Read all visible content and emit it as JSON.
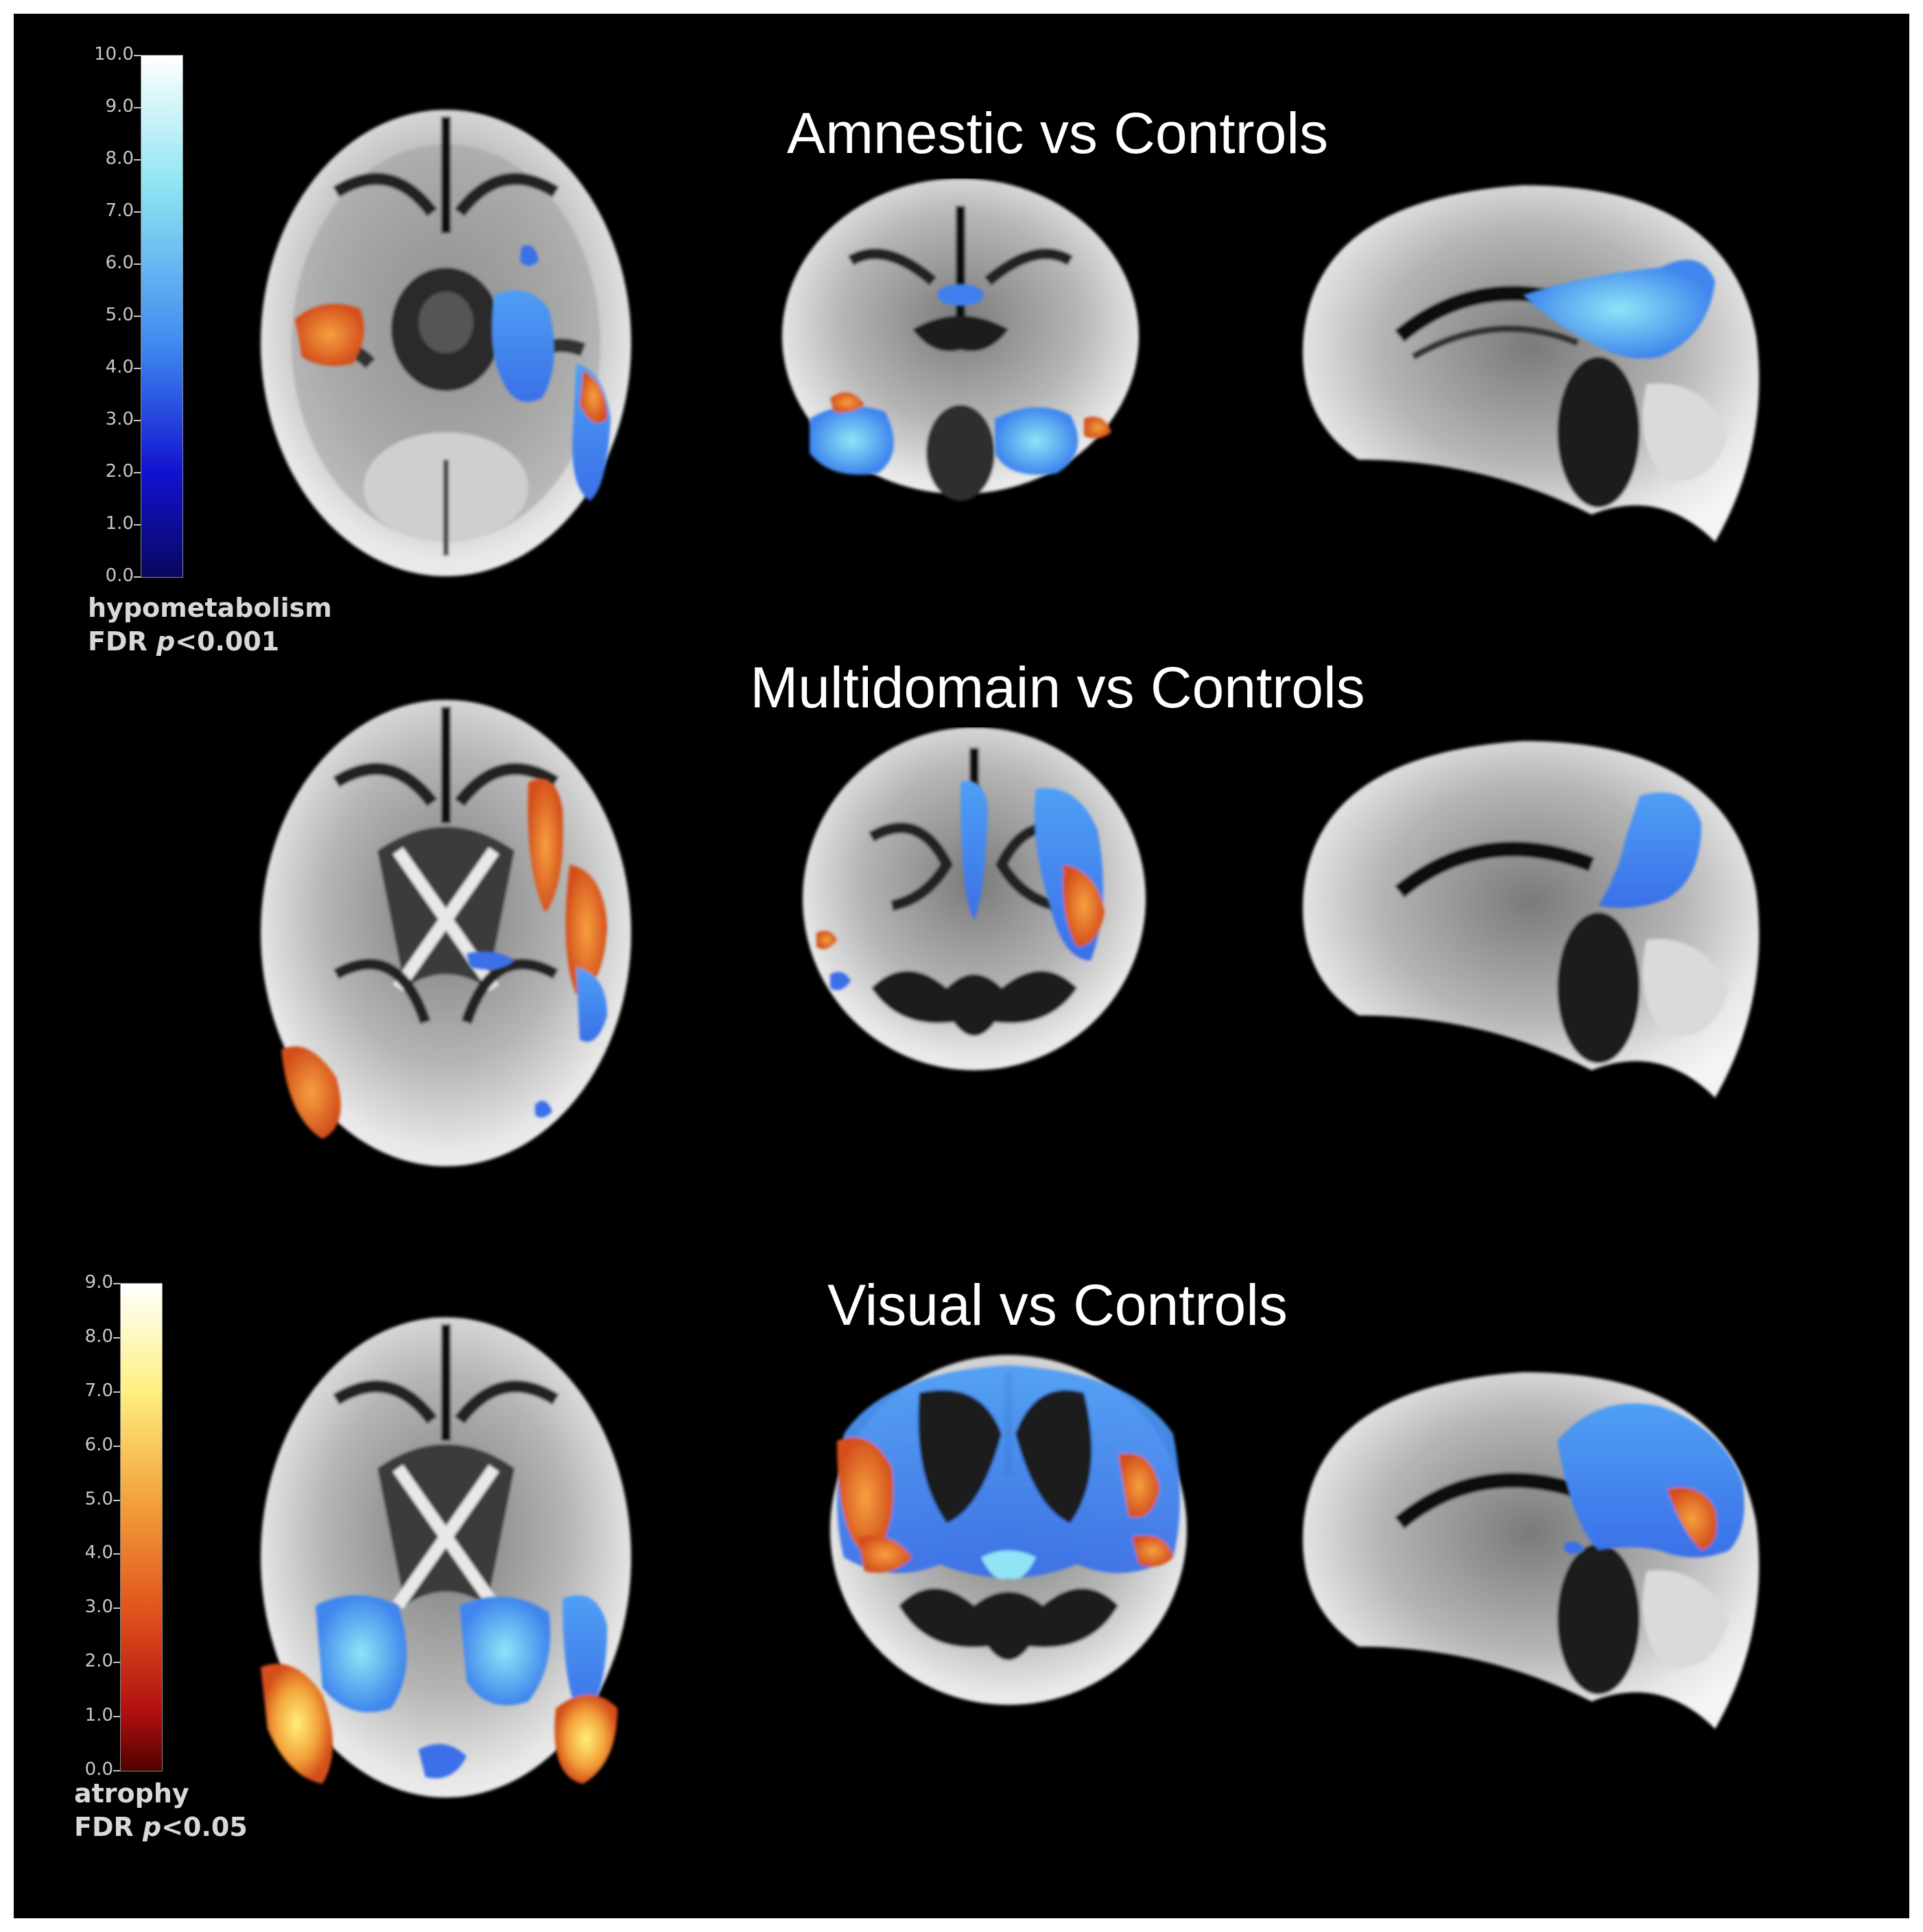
{
  "panels": [
    {
      "title": "Amnestic vs Controls"
    },
    {
      "title": "Multidomain vs Controls"
    },
    {
      "title": "Visual vs Controls"
    }
  ],
  "colorbars": {
    "hypometabolism": {
      "ticks": [
        "10.0",
        "9.0",
        "8.0",
        "7.0",
        "6.0",
        "5.0",
        "4.0",
        "3.0",
        "2.0",
        "1.0",
        "0.0"
      ],
      "label": "hypometabolism",
      "threshold_prefix": "FDR ",
      "threshold_p": "p",
      "threshold_value": "<0.001",
      "colors": [
        "#ffffff",
        "#6fd8f0",
        "#3f8cf0",
        "#1010c8",
        "#080850"
      ]
    },
    "atrophy": {
      "ticks": [
        "9.0",
        "8.0",
        "7.0",
        "6.0",
        "5.0",
        "4.0",
        "3.0",
        "2.0",
        "1.0",
        "0.0"
      ],
      "label": "atrophy",
      "threshold_prefix": "FDR ",
      "threshold_p": "p",
      "threshold_value": "<0.05",
      "colors": [
        "#ffffff",
        "#ffe860",
        "#f08a20",
        "#d02010",
        "#600000"
      ]
    }
  }
}
